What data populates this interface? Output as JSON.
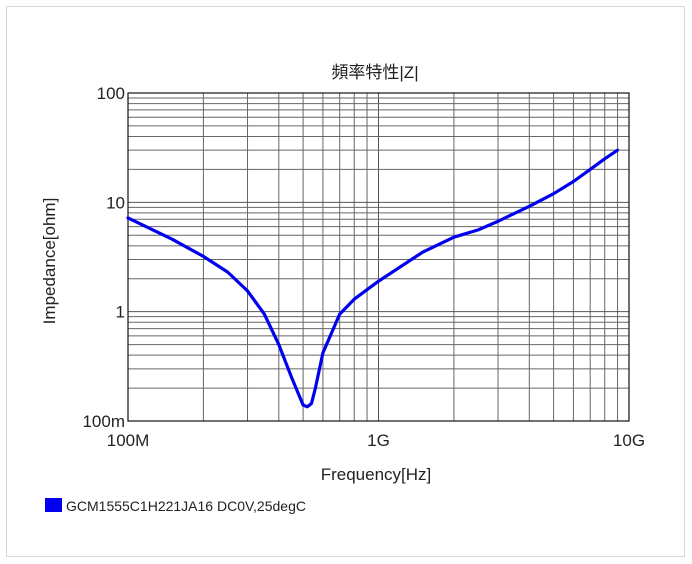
{
  "chart_data": {
    "type": "line",
    "title": "頻率特性|Z|",
    "xlabel": "Frequency[Hz]",
    "ylabel": "Impedance[ohm]",
    "x_scale": "log",
    "y_scale": "log",
    "xlim": [
      100000000,
      10000000000
    ],
    "ylim": [
      0.1,
      100
    ],
    "x_ticks": [
      {
        "value": 100000000,
        "label": "100M"
      },
      {
        "value": 1000000000,
        "label": "1G"
      },
      {
        "value": 10000000000,
        "label": "10G"
      }
    ],
    "y_ticks": [
      {
        "value": 100,
        "label": "100"
      },
      {
        "value": 10,
        "label": "10"
      },
      {
        "value": 1,
        "label": "1"
      },
      {
        "value": 0.1,
        "label": "100m"
      }
    ],
    "grid": true,
    "legend_position": "bottom-left",
    "series": [
      {
        "name": "GCM1555C1H221JA16 DC0V,25degC",
        "color": "#0000ee",
        "x": [
          100000000,
          150000000,
          200000000,
          250000000,
          300000000,
          350000000,
          400000000,
          450000000,
          500000000,
          520000000,
          540000000,
          560000000,
          600000000,
          700000000,
          800000000,
          1000000000,
          1500000000,
          2000000000,
          2500000000,
          3000000000,
          4000000000,
          5000000000,
          6000000000,
          7000000000,
          8000000000,
          9000000000
        ],
        "y": [
          7.2,
          4.6,
          3.2,
          2.3,
          1.55,
          0.95,
          0.5,
          0.25,
          0.14,
          0.135,
          0.145,
          0.2,
          0.42,
          0.95,
          1.3,
          1.9,
          3.5,
          4.8,
          5.6,
          6.7,
          9.2,
          12.0,
          15.5,
          20.0,
          25.0,
          30.0
        ]
      }
    ]
  }
}
